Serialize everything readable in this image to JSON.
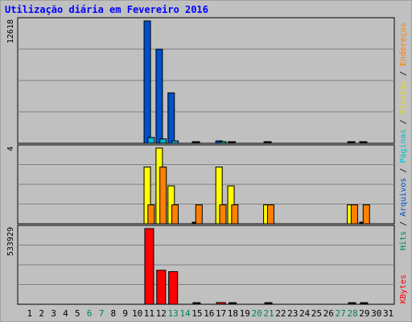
{
  "title": "Utilização diária em Fevereiro 2016",
  "chart_data": {
    "type": "bar",
    "title": "Utilização diária em Fevereiro 2016",
    "days": [
      "1",
      "2",
      "3",
      "4",
      "5",
      "6",
      "7",
      "8",
      "9",
      "10",
      "11",
      "12",
      "13",
      "14",
      "15",
      "16",
      "17",
      "18",
      "19",
      "20",
      "21",
      "22",
      "23",
      "24",
      "25",
      "26",
      "27",
      "28",
      "29",
      "30",
      "31"
    ],
    "weekend_days": [
      "6",
      "7",
      "13",
      "14",
      "20",
      "21",
      "27",
      "28"
    ],
    "panels": [
      {
        "name": "hits-files",
        "ymax_label": "12618",
        "ymax": 12618,
        "series": [
          {
            "name": "Hits",
            "color": "#0050d0",
            "values": [
              0,
              0,
              0,
              0,
              0,
              0,
              0,
              0,
              0,
              0,
              12618,
              9700,
              5200,
              0,
              0,
              0,
              250,
              0,
              0,
              0,
              0,
              0,
              0,
              0,
              0,
              0,
              0,
              0,
              0,
              0,
              0
            ]
          },
          {
            "name": "Arquivos",
            "color": "#00b0d0",
            "values": [
              0,
              0,
              0,
              0,
              0,
              0,
              0,
              0,
              0,
              0,
              600,
              450,
              250,
              0,
              0,
              0,
              80,
              0,
              0,
              0,
              0,
              0,
              0,
              0,
              0,
              0,
              0,
              0,
              0,
              0,
              0
            ]
          }
        ]
      },
      {
        "name": "visits-sites",
        "ymax_label": "4",
        "ymax": 4,
        "series": [
          {
            "name": "Visitas",
            "color": "#ffff00",
            "values": [
              0,
              0,
              0,
              0,
              0,
              0,
              0,
              0,
              0,
              0,
              3,
              4,
              2,
              0,
              0,
              0,
              3,
              2,
              0,
              0,
              1,
              0,
              0,
              0,
              0,
              0,
              0,
              1,
              0,
              0,
              0
            ]
          },
          {
            "name": "Endereços",
            "color": "#ff8000",
            "values": [
              0,
              0,
              0,
              0,
              0,
              0,
              0,
              0,
              0,
              0,
              1,
              3,
              1,
              0,
              1,
              0,
              1,
              1,
              0,
              0,
              1,
              0,
              0,
              0,
              0,
              0,
              0,
              1,
              1,
              0,
              0
            ]
          }
        ]
      },
      {
        "name": "kbytes",
        "ymax_label": "533929",
        "ymax": 533929,
        "series": [
          {
            "name": "KBytes",
            "color": "#ff0000",
            "values": [
              0,
              0,
              0,
              0,
              0,
              0,
              0,
              0,
              0,
              0,
              533929,
              240000,
              230000,
              0,
              0,
              0,
              12000,
              0,
              0,
              0,
              0,
              0,
              0,
              0,
              0,
              0,
              0,
              0,
              0,
              0,
              0
            ]
          }
        ]
      }
    ],
    "right_legend": {
      "top": [
        {
          "label": "Hits",
          "color": "#008060"
        },
        {
          "label": " / ",
          "color": "#000000"
        },
        {
          "label": "Arquivos",
          "color": "#0050d0"
        },
        {
          "label": " / ",
          "color": "#000000"
        },
        {
          "label": "Páginas",
          "color": "#00c0d0"
        },
        {
          "label": " / ",
          "color": "#000000"
        },
        {
          "label": "Visitas",
          "color": "#e0e000"
        },
        {
          "label": " / ",
          "color": "#000000"
        },
        {
          "label": "Endereços",
          "color": "#ff8000"
        }
      ],
      "bottom": {
        "label": "KBytes",
        "color": "#ff0000"
      }
    },
    "colors": {
      "title": "#0000ff",
      "plot_bg": "#c0c0c0",
      "frame": "#000000",
      "weekend_label": "#008060",
      "weekday_label": "#000000",
      "outer_bg": "#ffffff"
    }
  }
}
